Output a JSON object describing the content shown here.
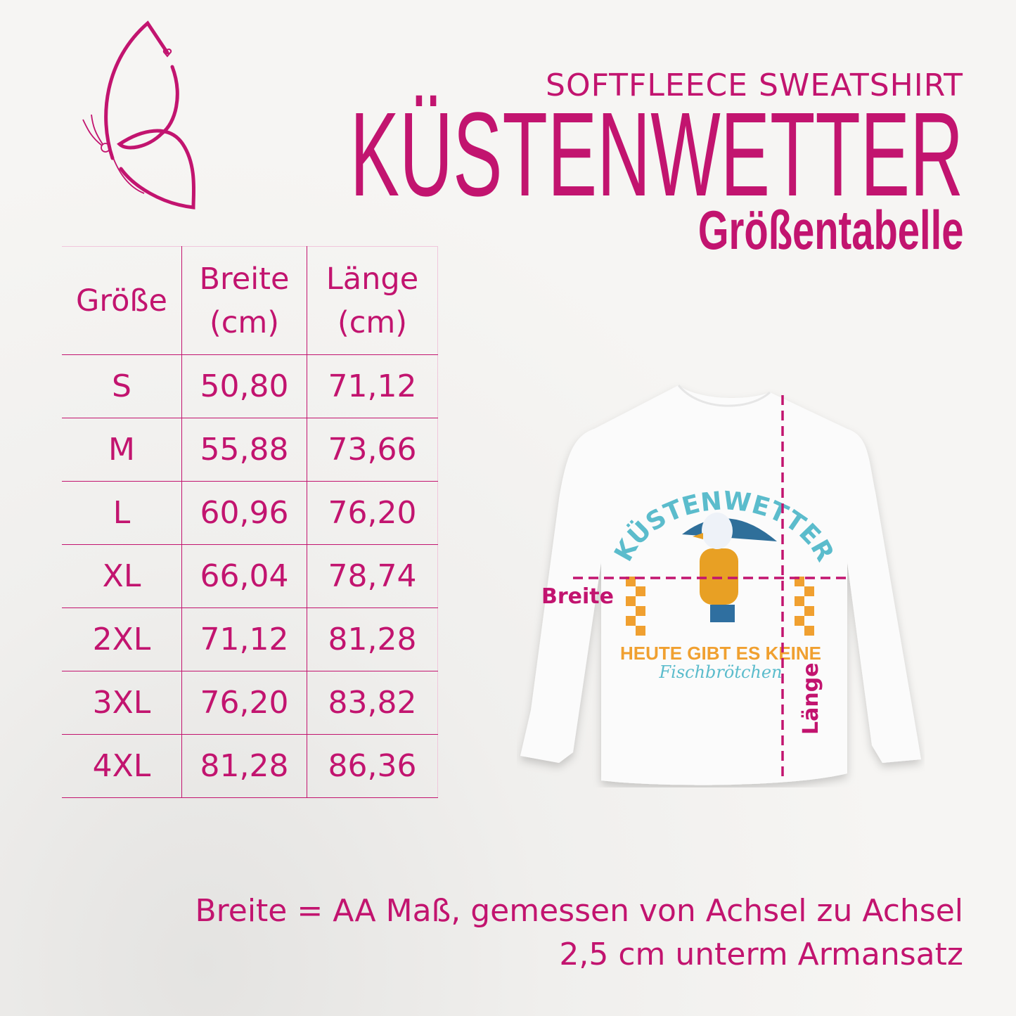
{
  "header": {
    "subtitle": "SOFTFLEECE SWEATSHIRT",
    "title": "KÜSTENWETTER",
    "heading": "Größentabelle"
  },
  "brand": {
    "logo_icon": "butterfly-heart-icon",
    "accent_color": "#c2146f"
  },
  "table": {
    "columns": [
      "Größe",
      "Breite (cm)",
      "Länge (cm)"
    ],
    "rows": [
      [
        "S",
        "50,80",
        "71,12"
      ],
      [
        "M",
        "55,88",
        "73,66"
      ],
      [
        "L",
        "60,96",
        "76,20"
      ],
      [
        "XL",
        "66,04",
        "78,74"
      ],
      [
        "2XL",
        "71,12",
        "81,28"
      ],
      [
        "3XL",
        "76,20",
        "83,82"
      ],
      [
        "4XL",
        "81,28",
        "86,36"
      ]
    ]
  },
  "diagram": {
    "width_label": "Breite",
    "length_label": "Länge",
    "print": {
      "arc_text": "KÜSTENWETTER",
      "line1": "HEUTE GIBT ES KEINE",
      "line2": "Fischbrötchen"
    }
  },
  "footer": {
    "line1": "Breite = AA Maß, gemessen von Achsel zu Achsel",
    "line2": "2,5 cm unterm Armansatz"
  }
}
